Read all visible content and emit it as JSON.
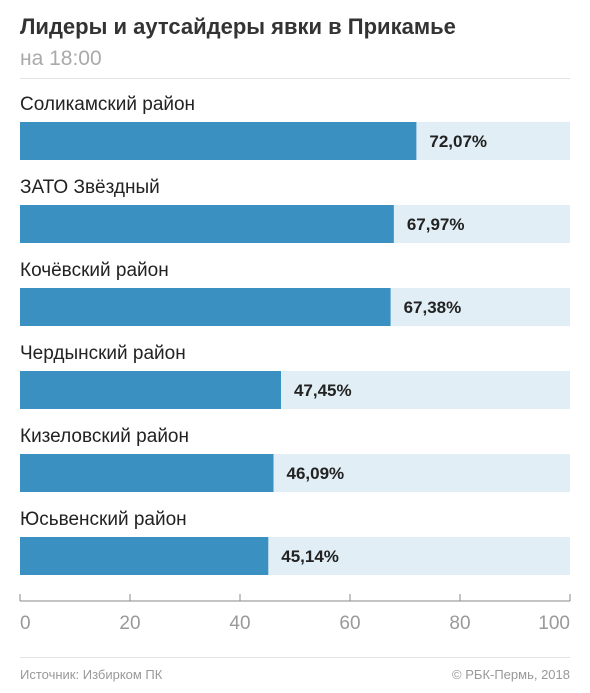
{
  "header": {
    "title": "Лидеры и аутсайдеры явки в Прикамье",
    "subtitle": "на 18:00"
  },
  "footer": {
    "source": "Источник: Избирком ПК",
    "credit": "© РБК-Пермь, 2018"
  },
  "chart_data": {
    "type": "bar",
    "orientation": "horizontal",
    "categories": [
      "Соликамский район",
      "ЗАТО Звёздный",
      "Кочёвский район",
      "Чердынский район",
      "Кизеловский район",
      "Юсьвенский район"
    ],
    "values": [
      72.07,
      67.97,
      67.38,
      47.45,
      46.09,
      45.14
    ],
    "value_labels": [
      "72,07%",
      "67,97%",
      "67,38%",
      "47,45%",
      "46,09%",
      "45,14%"
    ],
    "xlim": [
      0,
      100
    ],
    "xticks": [
      0,
      20,
      40,
      60,
      80,
      100
    ],
    "xtick_labels": [
      "0",
      "20",
      "40",
      "60",
      "80",
      "100"
    ],
    "grid": false,
    "colors": {
      "bar": "#3a90c1",
      "track": "#e1eef5",
      "axis": "#888888"
    }
  }
}
